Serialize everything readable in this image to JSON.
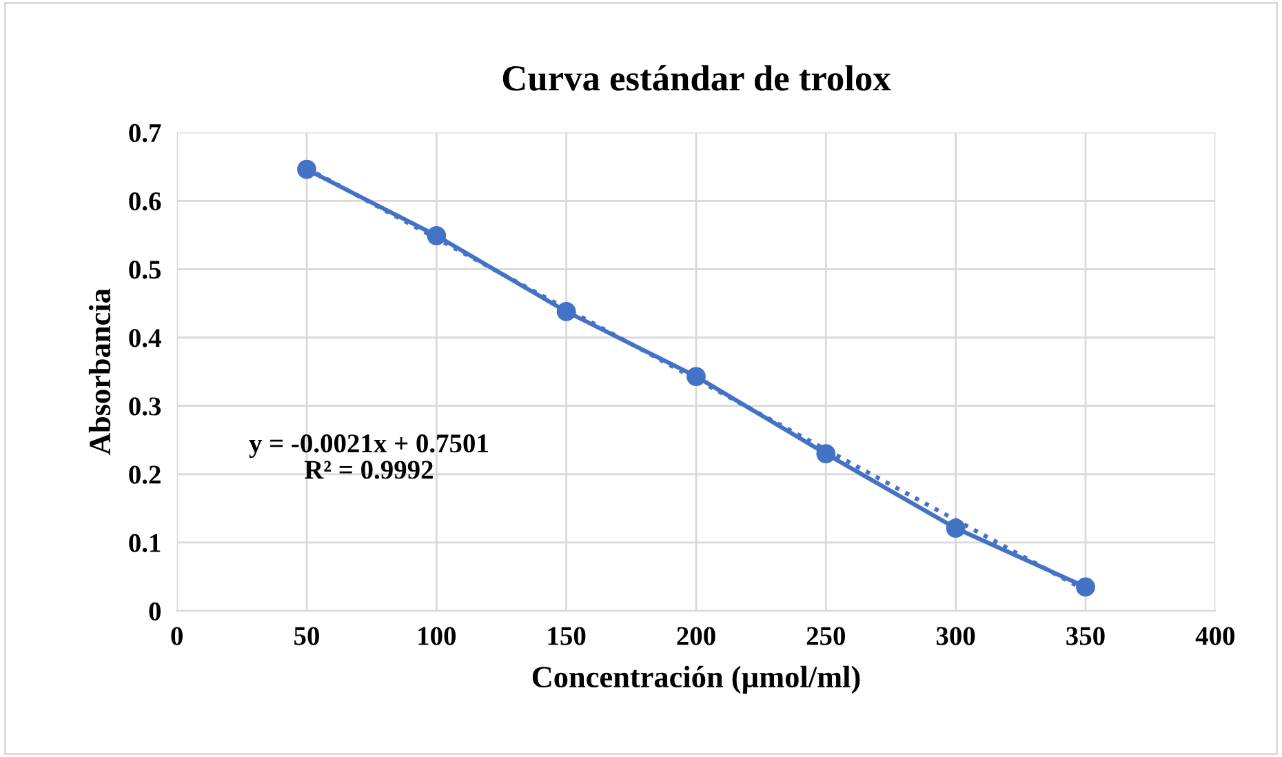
{
  "chart_data": {
    "type": "line",
    "title": "Curva estándar de trolox",
    "xlabel": "Concentración (µmol/ml)",
    "ylabel": "Absorbancia",
    "xlim": [
      0,
      400
    ],
    "xticks": [
      0,
      50,
      100,
      150,
      200,
      250,
      300,
      350,
      400
    ],
    "ylim": [
      0,
      0.7
    ],
    "yticks": [
      0,
      0.1,
      0.2,
      0.3,
      0.4,
      0.5,
      0.6,
      0.7
    ],
    "grid": true,
    "series": [
      {
        "x": [
          50,
          100,
          150,
          200,
          250,
          300,
          350
        ],
        "values": [
          0.646,
          0.549,
          0.438,
          0.343,
          0.23,
          0.121,
          0.035
        ],
        "color": "#4472c4",
        "marker": "circle",
        "line_style": "solid"
      },
      {
        "x": [
          50,
          350
        ],
        "values": [
          0.648,
          0.03
        ],
        "color": "#4472c4",
        "marker": "none",
        "line_style": "dotted"
      }
    ],
    "annotations": [
      "y = -0.0021x + 0.7501",
      "R² = 0.9992"
    ]
  }
}
